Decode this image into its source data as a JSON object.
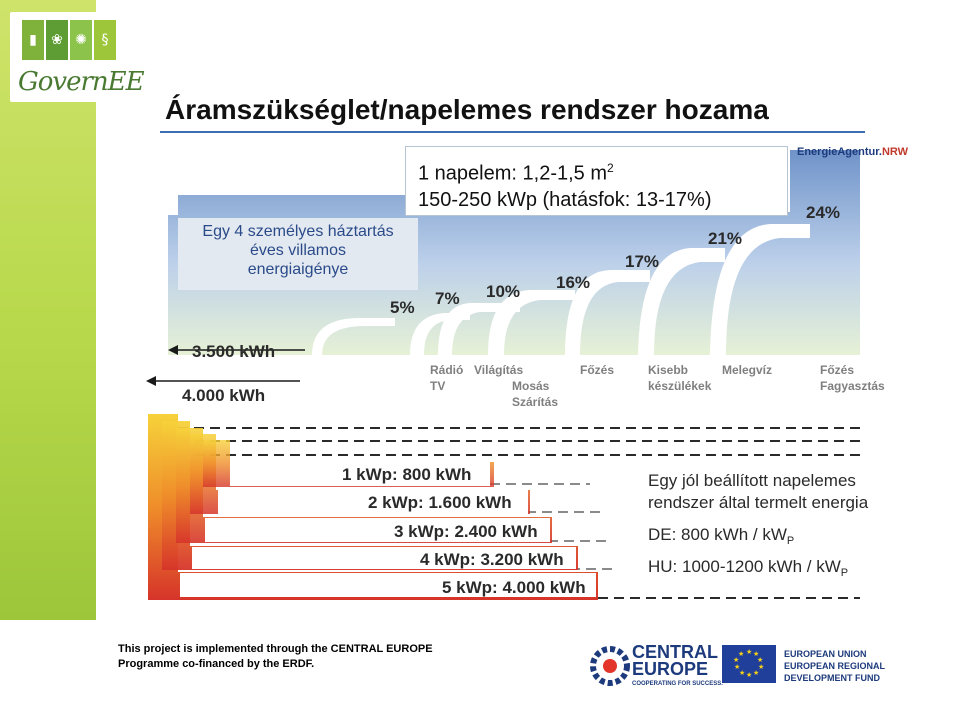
{
  "logo": {
    "brand": "GovernEE"
  },
  "title": "Áramszükséglet/napelemes rendszer hozama",
  "household": {
    "lines": [
      "Egy 4 személyes háztartás",
      "éves villamos",
      "energiaigénye"
    ]
  },
  "napelem": {
    "line1_prefix": "1 napelem: 1,2-1,5 m",
    "line1_sup": "2",
    "line2": "150-250 kWp (hatásfok: 13-17%)"
  },
  "agency": {
    "name": "EnergieAgentur.",
    "suffix": "NRW"
  },
  "consumption": {
    "total_3500": "3.500 kWh",
    "total_4000": "4.000 kWh",
    "percent_labels": [
      "5%",
      "7%",
      "10%",
      "16%",
      "17%",
      "21%",
      "24%"
    ],
    "categories": {
      "radio": "Rádió",
      "tv": "TV",
      "vilagitas": "Világítás",
      "mosas": "Mosás",
      "szaritas": "Szárítás",
      "fozes1": "Főzés",
      "kisebb": "Kisebb",
      "keszulekek": "készülékek",
      "melegviz": "Melegvíz",
      "fozes2": "Főzés",
      "fagyasztas": "Fagyasztás"
    }
  },
  "production": {
    "levels": [
      "1 kWp: 800 kWh",
      "2 kWp: 1.600 kWh",
      "3 kWp: 2.400 kWh",
      "4 kWp: 3.200 kWh",
      "5 kWp: 4.000 kWh"
    ],
    "note_line1": "Egy jól beállított napelemes",
    "note_line2": "rendszer által termelt energia",
    "de_prefix": "DE: 800 kWh / kW",
    "de_sub": "P",
    "hu_prefix": "HU: 1000-1200 kWh / kW",
    "hu_sub": "P"
  },
  "footer": {
    "line1": "This project is implemented through the CENTRAL EUROPE",
    "line2": "Programme co-financed by the ERDF.",
    "ce_line1": "CENTRAL",
    "ce_line2": "EUROPE",
    "ce_sub": "COOPERATING FOR SUCCESS.",
    "eu_line1": "EUROPEAN UNION",
    "eu_line2": "EUROPEAN REGIONAL",
    "eu_line3": "DEVELOPMENT FUND"
  }
}
